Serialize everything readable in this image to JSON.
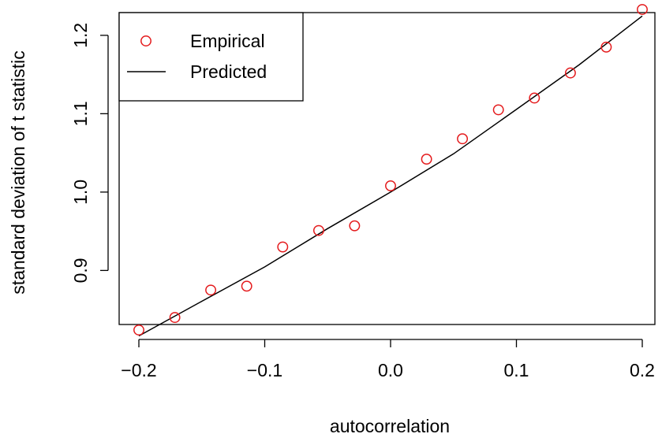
{
  "chart_data": {
    "type": "scatter",
    "xlabel": "autocorrelation",
    "ylabel": "standard deviation of t statistic",
    "xlim": [
      -0.2,
      0.2
    ],
    "ylim": [
      0.82,
      1.23
    ],
    "x_ticks": [
      -0.2,
      -0.1,
      0.0,
      0.1,
      0.2
    ],
    "x_tick_labels": [
      "−0.2",
      "−0.1",
      "0.0",
      "0.1",
      "0.2"
    ],
    "y_ticks": [
      0.9,
      1.0,
      1.1,
      1.2
    ],
    "y_tick_labels": [
      "0.9",
      "1.0",
      "1.1",
      "1.2"
    ],
    "grid": false,
    "legend_position": "top-left",
    "series": [
      {
        "name": "Empirical",
        "style": "points",
        "color": "#e41a1c",
        "x": [
          -0.2,
          -0.1714,
          -0.1429,
          -0.1143,
          -0.0857,
          -0.0571,
          -0.0286,
          0.0,
          0.0286,
          0.0571,
          0.0857,
          0.1143,
          0.1429,
          0.1714,
          0.2
        ],
        "y": [
          0.824,
          0.84,
          0.875,
          0.88,
          0.93,
          0.951,
          0.957,
          1.008,
          1.042,
          1.068,
          1.105,
          1.12,
          1.152,
          1.185,
          1.233
        ]
      },
      {
        "name": "Predicted",
        "style": "line",
        "color": "#000000",
        "x": [
          -0.2,
          -0.15,
          -0.1,
          -0.05,
          0.0,
          0.05,
          0.1,
          0.15,
          0.2
        ],
        "y": [
          0.8165,
          0.8607,
          0.9045,
          0.9535,
          1.0,
          1.0488,
          1.1055,
          1.1626,
          1.2247
        ]
      }
    ]
  }
}
